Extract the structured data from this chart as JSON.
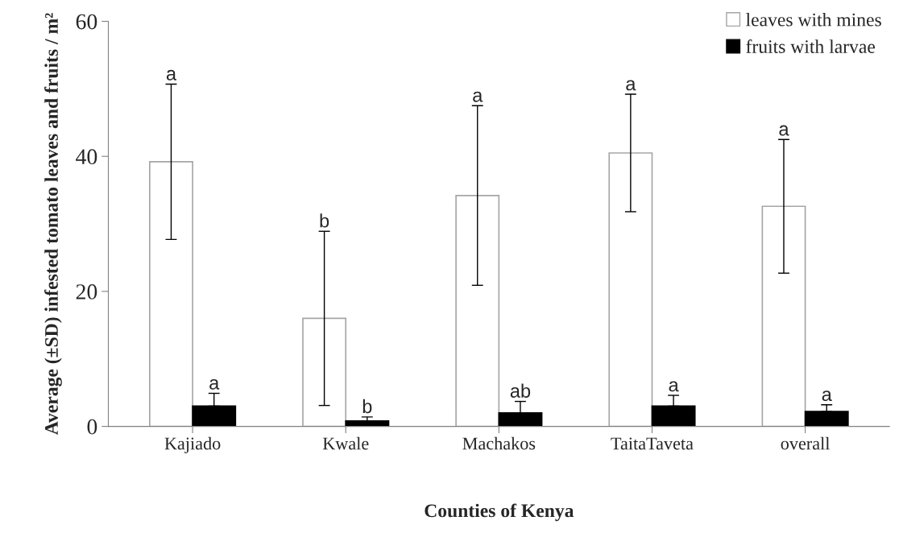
{
  "chart_data": {
    "type": "bar",
    "xlabel": "Counties of Kenya",
    "ylabel": "Average (±SD) infested tomato leaves and fruits / m²",
    "categories": [
      "Kajiado",
      "Kwale",
      "Machakos",
      "TaitaTaveta",
      "overall"
    ],
    "series": [
      {
        "name": "leaves with mines",
        "color": "#ffffff",
        "values": [
          39.2,
          16.0,
          34.2,
          40.5,
          32.6
        ],
        "errors": [
          11.5,
          12.9,
          13.3,
          8.7,
          9.9
        ]
      },
      {
        "name": "fruits with larvae",
        "color": "#000000",
        "values": [
          3.0,
          0.8,
          2.0,
          3.0,
          2.2
        ],
        "errors": [
          [
            3.0,
            4.9
          ],
          [
            0.8,
            1.4
          ],
          [
            2.0,
            3.7
          ],
          [
            3.0,
            4.6
          ],
          [
            2.2,
            3.2
          ]
        ]
      }
    ],
    "annotations": [
      "a",
      "a",
      "b",
      "b",
      "a",
      "ab",
      "a",
      "a",
      "a",
      "a"
    ],
    "ylim": [
      0,
      60
    ],
    "yticks": [
      0,
      20,
      40,
      60
    ],
    "grid": false,
    "legend": "top right"
  }
}
